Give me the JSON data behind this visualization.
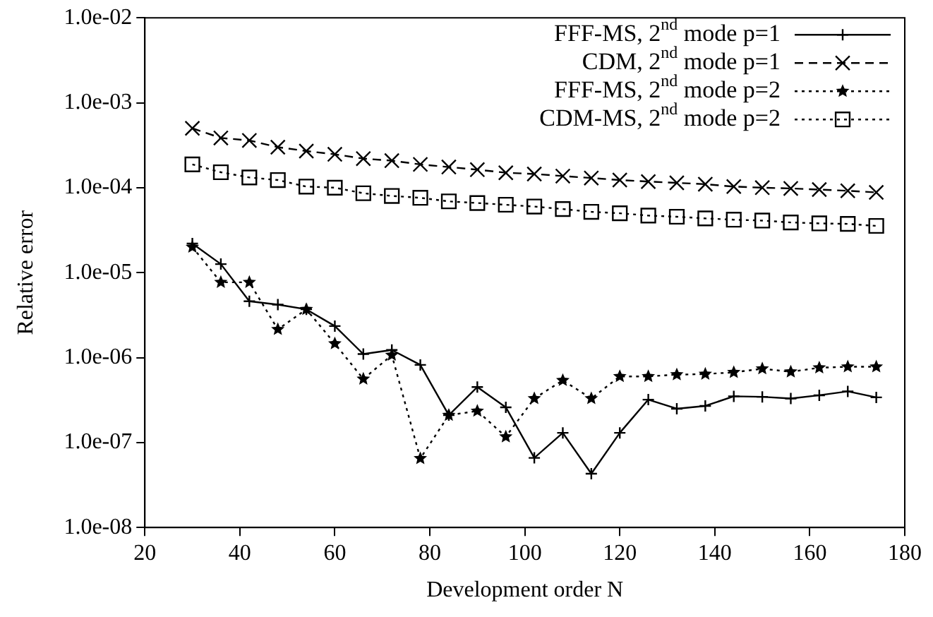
{
  "chart_data": {
    "type": "line",
    "xlabel": "Development order N",
    "ylabel": "Relative error",
    "log": "y",
    "x": [
      30,
      36,
      42,
      48,
      54,
      60,
      66,
      72,
      78,
      84,
      90,
      96,
      102,
      108,
      114,
      120,
      126,
      132,
      138,
      144,
      150,
      156,
      162,
      168,
      174
    ],
    "xlim": [
      20,
      180
    ],
    "xticks": [
      20,
      40,
      60,
      80,
      100,
      120,
      140,
      160,
      180
    ],
    "ylim": [
      1e-08,
      0.01
    ],
    "yticks": [
      {
        "value": 1e-08,
        "label": "1.0e-08"
      },
      {
        "value": 1e-07,
        "label": "1.0e-07"
      },
      {
        "value": 1e-06,
        "label": "1.0e-06"
      },
      {
        "value": 1e-05,
        "label": "1.0e-05"
      },
      {
        "value": 0.0001,
        "label": "1.0e-04"
      },
      {
        "value": 0.001,
        "label": "1.0e-03"
      },
      {
        "value": 0.01,
        "label": "1.0e-02"
      }
    ],
    "grid": false,
    "legend": "top right",
    "series": [
      {
        "name": "FFF-MS, 2$^{nd}$ mode p=1",
        "color": "#000000",
        "marker": "plus",
        "line_style": "solid",
        "values": [
          2.2e-05,
          1.26e-05,
          4.6e-06,
          4.2e-06,
          3.7e-06,
          2.35e-06,
          1.1e-06,
          1.23e-06,
          8.2e-07,
          2.1e-07,
          4.5e-07,
          2.6e-07,
          6.6e-08,
          1.3e-07,
          4.3e-08,
          1.3e-07,
          3.2e-07,
          2.5e-07,
          2.7e-07,
          3.5e-07,
          3.45e-07,
          3.3e-07,
          3.6e-07,
          4e-07,
          3.4e-07
        ]
      },
      {
        "name": "CDM, 2$^{nd}$ mode p=1",
        "color": "#000000",
        "marker": "cross",
        "line_style": "dashed",
        "values": [
          0.0005,
          0.000385,
          0.00036,
          0.0003,
          0.00027,
          0.000247,
          0.00022,
          0.000208,
          0.000188,
          0.000175,
          0.000163,
          0.00015,
          0.000145,
          0.000137,
          0.00013,
          0.000123,
          0.000118,
          0.000114,
          0.00011,
          0.000103,
          0.0001,
          9.8e-05,
          9.5e-05,
          9.2e-05,
          8.8e-05
        ]
      },
      {
        "name": "FFF-MS, 2$^{nd}$ mode p=2",
        "color": "#000000",
        "marker": "star",
        "line_style": "dotted",
        "values": [
          2e-05,
          7.7e-06,
          7.7e-06,
          2.15e-06,
          3.7e-06,
          1.46e-06,
          5.6e-07,
          1.07e-06,
          6.5e-08,
          2.1e-07,
          2.35e-07,
          1.17e-07,
          3.3e-07,
          5.4e-07,
          3.3e-07,
          6e-07,
          6e-07,
          6.3e-07,
          6.4e-07,
          6.7e-07,
          7.4e-07,
          6.8e-07,
          7.6e-07,
          7.8e-07,
          7.8e-07
        ]
      },
      {
        "name": "CDM-MS, 2$^{nd}$ mode p=2",
        "color": "#000000",
        "marker": "square",
        "line_style": "dotted",
        "values": [
          0.000188,
          0.000152,
          0.000132,
          0.000123,
          0.000103,
          0.0001,
          8.6e-05,
          8e-05,
          7.6e-05,
          6.9e-05,
          6.6e-05,
          6.3e-05,
          6e-05,
          5.6e-05,
          5.2e-05,
          5e-05,
          4.7e-05,
          4.55e-05,
          4.35e-05,
          4.2e-05,
          4.1e-05,
          3.9e-05,
          3.8e-05,
          3.75e-05,
          3.55e-05
        ]
      }
    ]
  }
}
